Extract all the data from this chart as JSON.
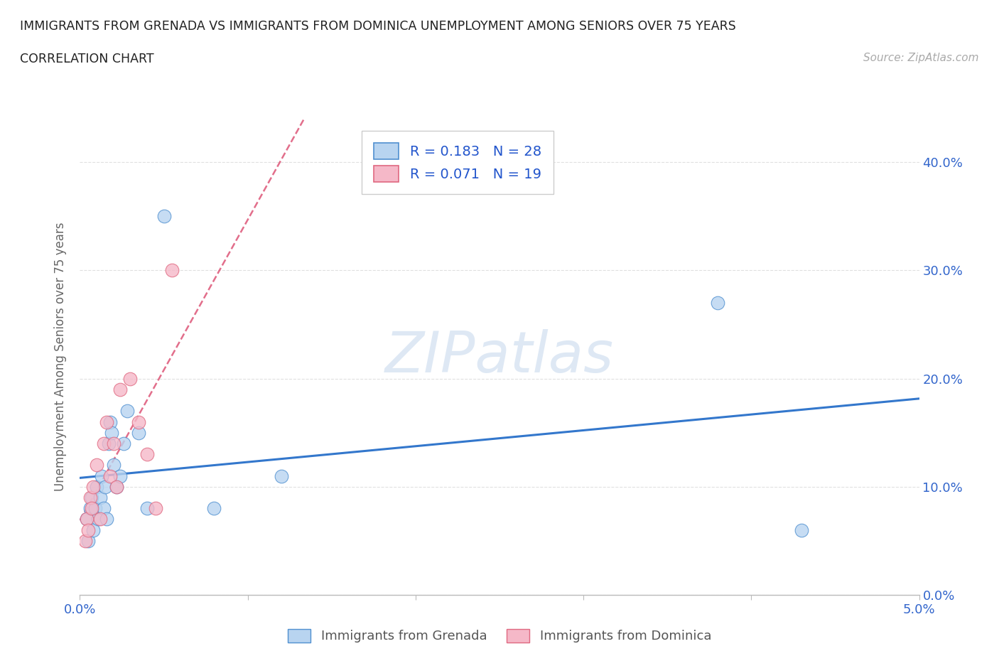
{
  "title_line1": "IMMIGRANTS FROM GRENADA VS IMMIGRANTS FROM DOMINICA UNEMPLOYMENT AMONG SENIORS OVER 75 YEARS",
  "title_line2": "CORRELATION CHART",
  "source": "Source: ZipAtlas.com",
  "ylabel": "Unemployment Among Seniors over 75 years",
  "xlim": [
    0.0,
    0.05
  ],
  "ylim": [
    0.0,
    0.44
  ],
  "xticks": [
    0.0,
    0.01,
    0.02,
    0.03,
    0.04,
    0.05
  ],
  "yticks": [
    0.0,
    0.1,
    0.2,
    0.3,
    0.4
  ],
  "grenada_x": [
    0.0004,
    0.0005,
    0.0006,
    0.0007,
    0.0008,
    0.0009,
    0.001,
    0.0011,
    0.0012,
    0.0013,
    0.0014,
    0.0015,
    0.0016,
    0.0017,
    0.0018,
    0.0019,
    0.002,
    0.0022,
    0.0024,
    0.0026,
    0.0028,
    0.0035,
    0.004,
    0.005,
    0.008,
    0.012,
    0.038,
    0.043
  ],
  "grenada_y": [
    0.07,
    0.05,
    0.08,
    0.09,
    0.06,
    0.08,
    0.1,
    0.07,
    0.09,
    0.11,
    0.08,
    0.1,
    0.07,
    0.14,
    0.16,
    0.15,
    0.12,
    0.1,
    0.11,
    0.14,
    0.17,
    0.15,
    0.08,
    0.35,
    0.08,
    0.11,
    0.27,
    0.06
  ],
  "dominica_x": [
    0.0003,
    0.0004,
    0.0005,
    0.0006,
    0.0007,
    0.0008,
    0.001,
    0.0012,
    0.0014,
    0.0016,
    0.0018,
    0.002,
    0.0022,
    0.0024,
    0.003,
    0.0035,
    0.004,
    0.0045,
    0.0055
  ],
  "dominica_y": [
    0.05,
    0.07,
    0.06,
    0.09,
    0.08,
    0.1,
    0.12,
    0.07,
    0.14,
    0.16,
    0.11,
    0.14,
    0.1,
    0.19,
    0.2,
    0.16,
    0.13,
    0.08,
    0.3
  ],
  "grenada_R": 0.183,
  "grenada_N": 28,
  "dominica_R": 0.071,
  "dominica_N": 19,
  "grenada_color": "#b8d4f0",
  "dominica_color": "#f5b8c8",
  "grenada_edge_color": "#5090d0",
  "dominica_edge_color": "#e06880",
  "grenada_trend_color": "#3377cc",
  "dominica_trend_color": "#dd5577",
  "watermark_color": "#d0dff0",
  "background_color": "#ffffff",
  "grid_color": "#dddddd",
  "tick_color": "#3366cc",
  "axis_label_color": "#666666",
  "title_color": "#222222",
  "source_color": "#aaaaaa"
}
